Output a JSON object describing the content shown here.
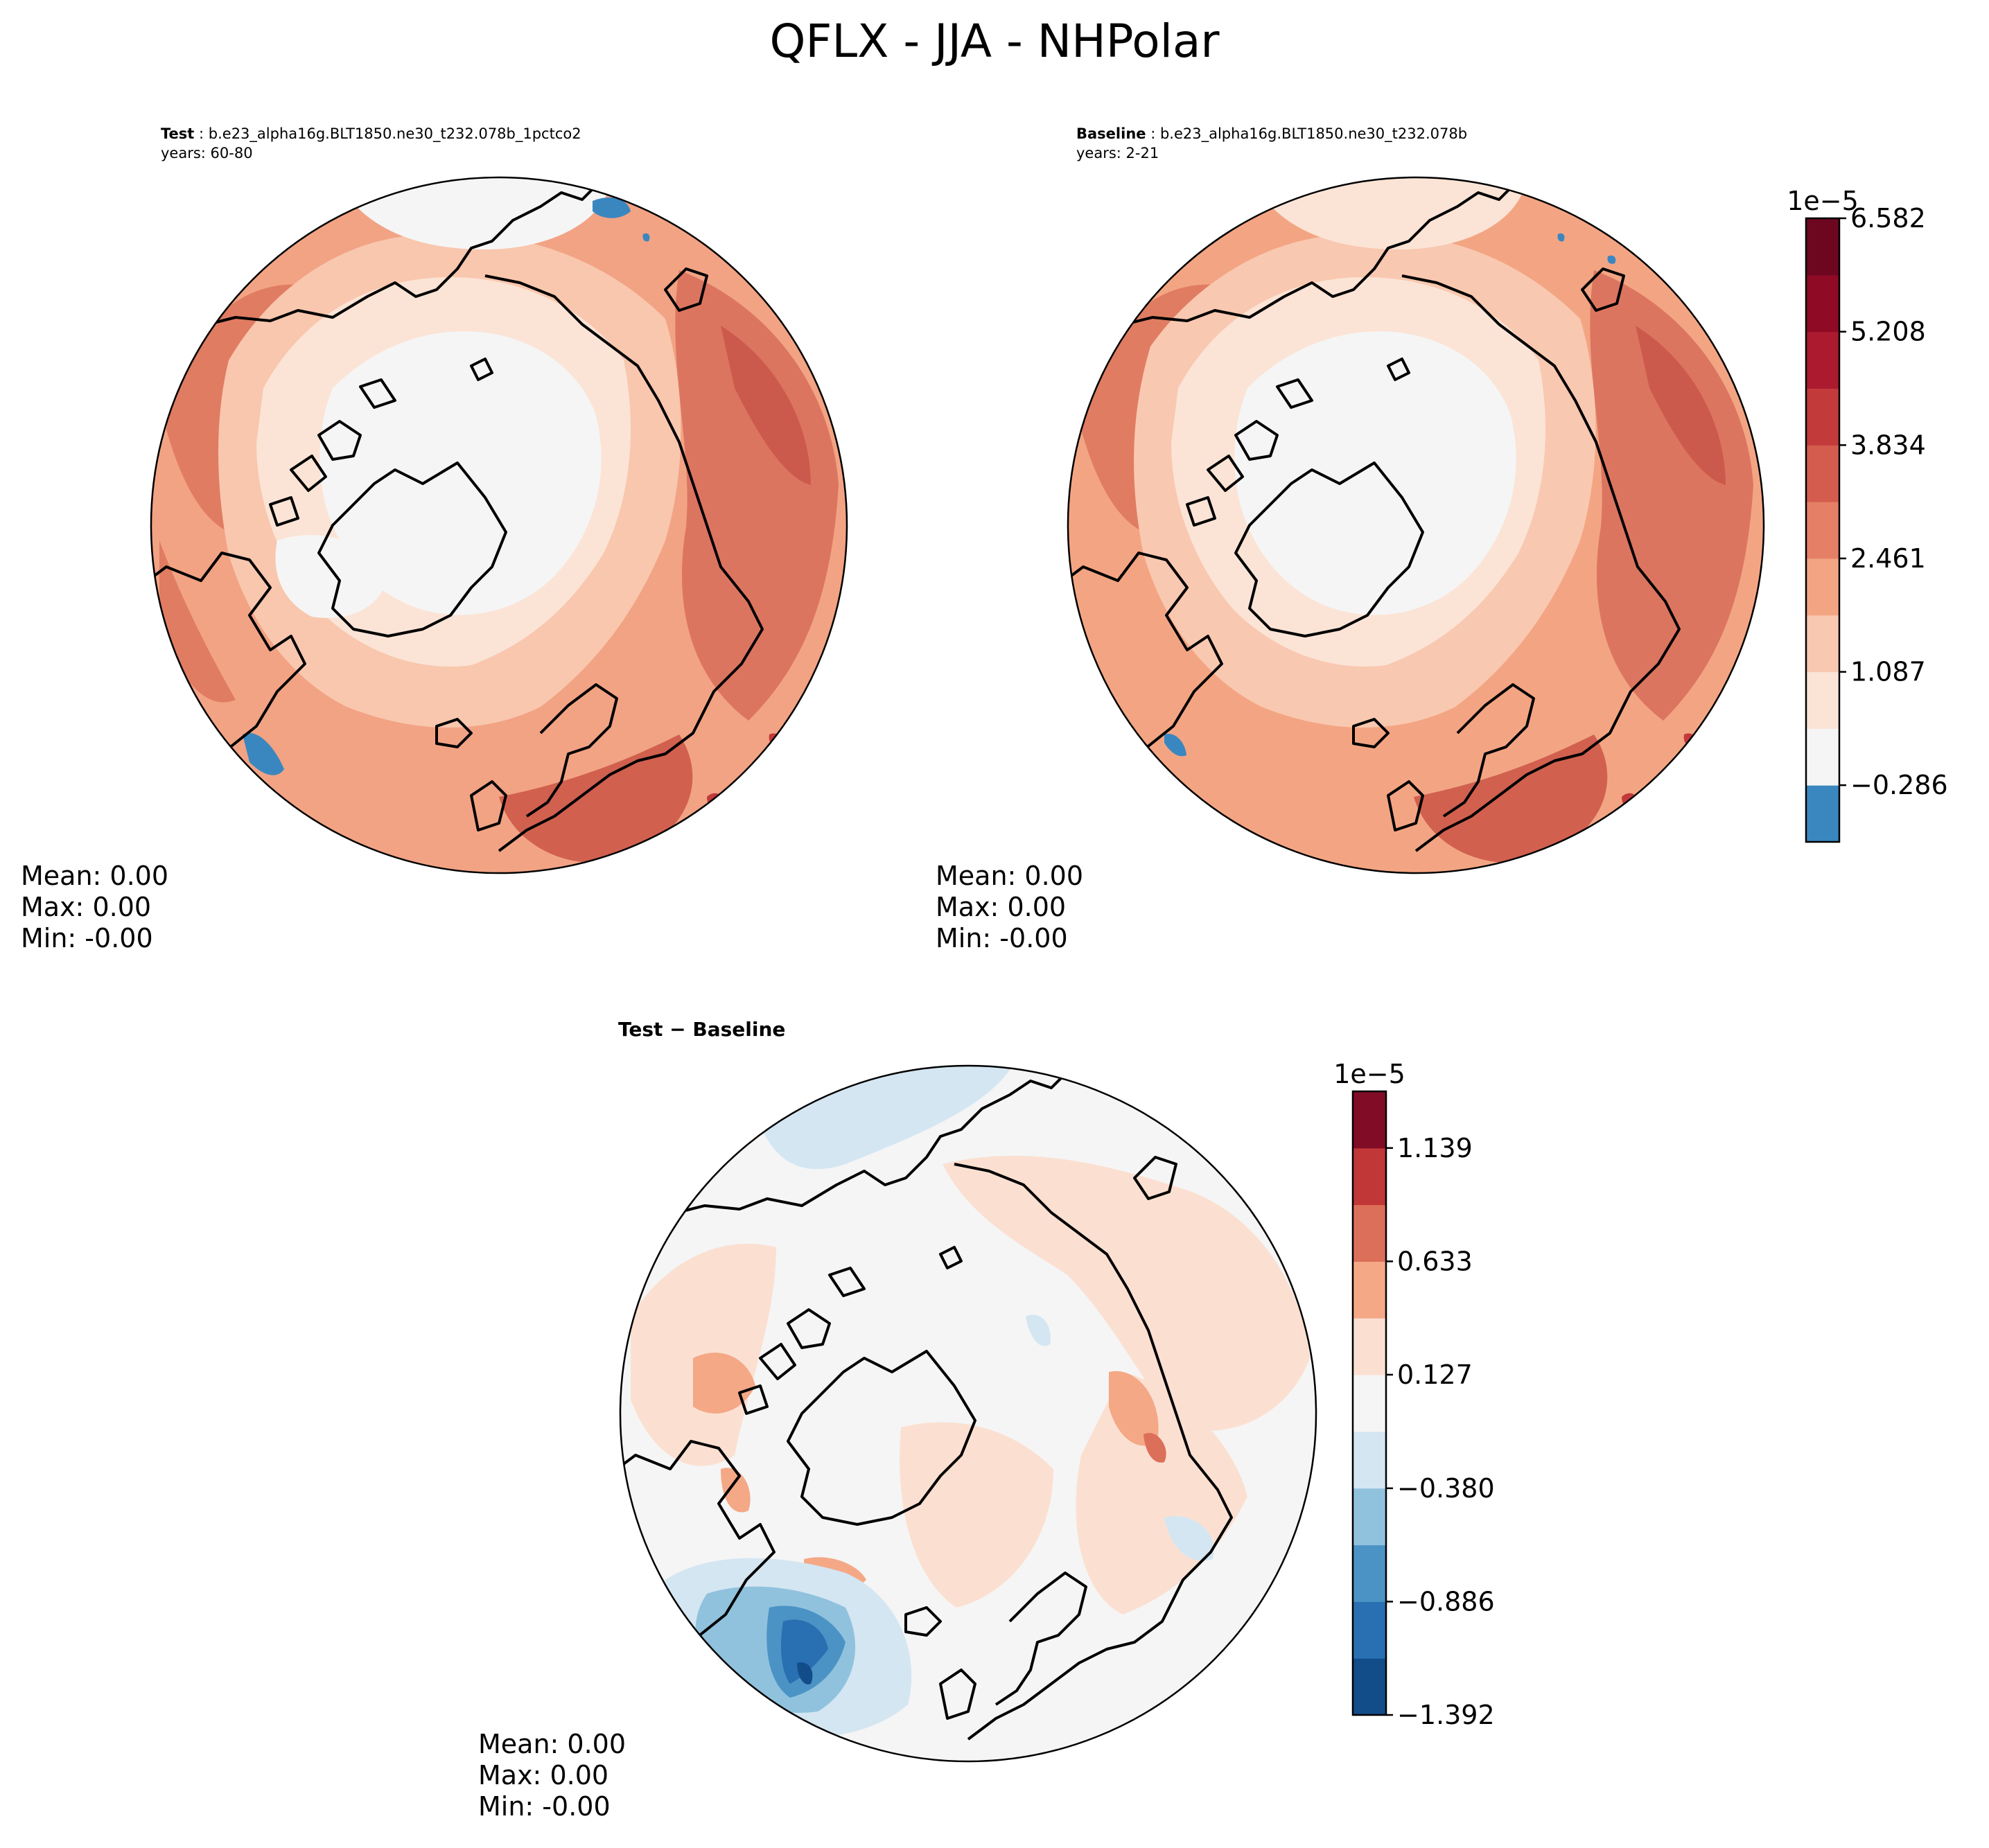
{
  "figure": {
    "title": "QFLX - JJA - NHPolar"
  },
  "panels": [
    {
      "id": "test",
      "label": "Test",
      "case": "b.e23_alpha16g.BLT1850.ne30_t232.078b_1pctco2",
      "years": "years: 60-80",
      "stats": {
        "mean": "Mean:  0.00",
        "max": "Max:  0.00",
        "min": "Min: -0.00"
      }
    },
    {
      "id": "baseline",
      "label": "Baseline",
      "case": "b.e23_alpha16g.BLT1850.ne30_t232.078b",
      "years": "years: 2-21",
      "stats": {
        "mean": "Mean:  0.00",
        "max": "Max:  0.00",
        "min": "Min: -0.00"
      }
    },
    {
      "id": "diff",
      "label": "Test − Baseline",
      "stats": {
        "mean": "Mean:  0.00",
        "max": "Max:  0.00",
        "min": "Min: -0.00"
      }
    }
  ],
  "chart_data": [
    {
      "type": "heatmap",
      "projection": "north-polar-stereographic",
      "panels": [
        "Test",
        "Baseline"
      ],
      "colorbar": {
        "offset": "1e−5",
        "range": [
          -0.973,
          6.582
        ],
        "levels": 11,
        "colors": [
          "#3a87c0",
          "#f5f5f5",
          "#fbe3d6",
          "#f9c8b0",
          "#f3a583",
          "#e58066",
          "#d45c4e",
          "#c23a3a",
          "#ab1a2e",
          "#8e0a25",
          "#6d0720"
        ],
        "tick_values": [
          -0.286,
          1.087,
          2.461,
          3.834,
          5.208,
          6.582
        ],
        "tick_labels": [
          "−0.286",
          "1.087",
          "2.461",
          "3.834",
          "5.208",
          "6.582"
        ]
      }
    },
    {
      "type": "heatmap",
      "projection": "north-polar-stereographic",
      "panels": [
        "Test − Baseline"
      ],
      "colorbar": {
        "offset": "1e−5",
        "range": [
          -1.392,
          1.392
        ],
        "levels": 11,
        "colors": [
          "#124d8a",
          "#2970b2",
          "#4c93c5",
          "#90c2de",
          "#d4e6f2",
          "#f5f5f5",
          "#fbe0d2",
          "#f4a886",
          "#dc6f59",
          "#c13637",
          "#800d25"
        ],
        "tick_values": [
          -1.392,
          -0.886,
          -0.38,
          0.127,
          0.633,
          1.139
        ],
        "tick_labels": [
          "−1.392",
          "−0.886",
          "−0.380",
          "0.127",
          "0.633",
          "1.139"
        ]
      }
    }
  ]
}
